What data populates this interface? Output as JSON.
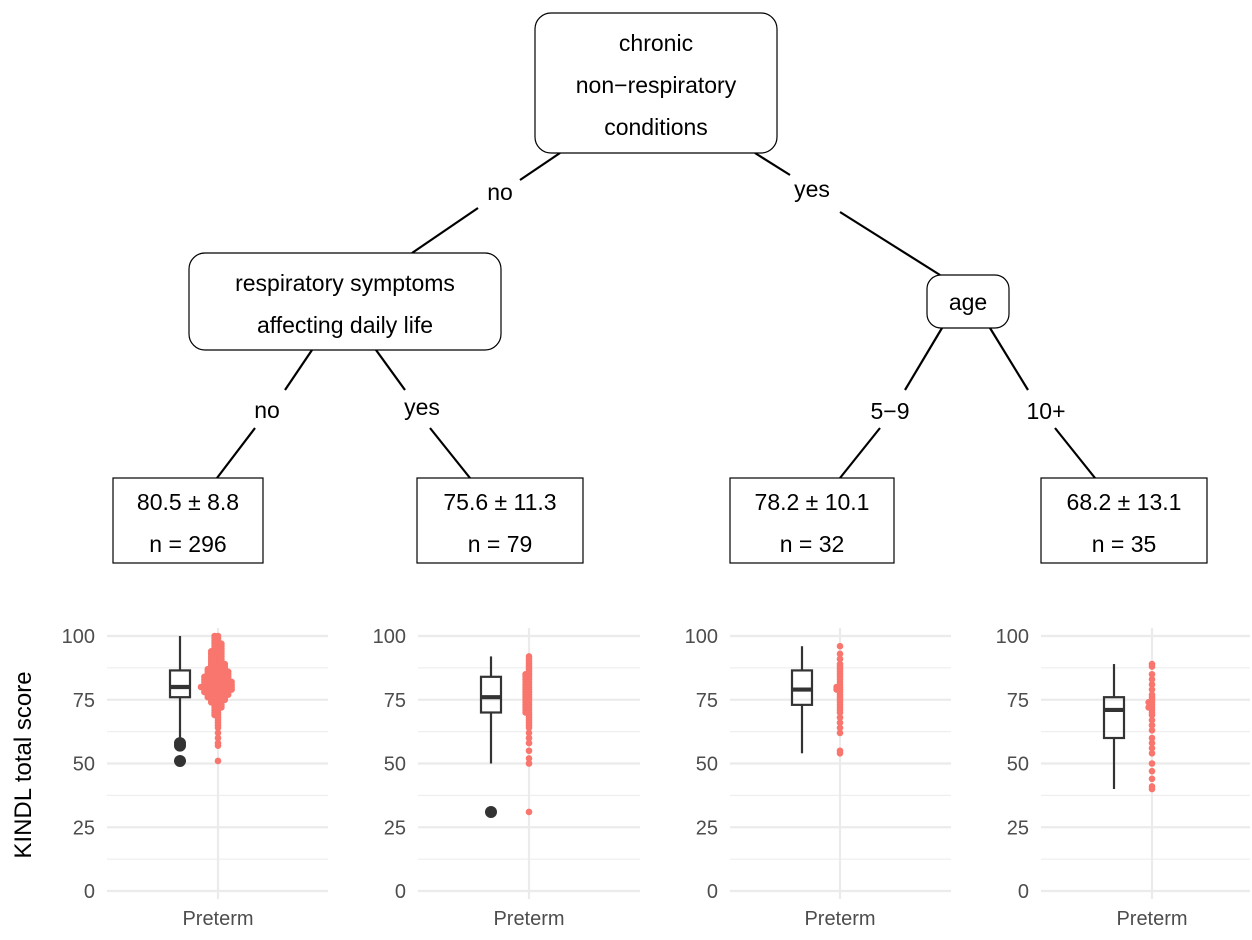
{
  "tree": {
    "root": {
      "label_lines": [
        "chronic",
        "non−respiratory",
        "conditions"
      ]
    },
    "root_edges": {
      "left": "no",
      "right": "yes"
    },
    "left_node": {
      "label_lines": [
        "respiratory symptoms",
        "affecting daily life"
      ]
    },
    "left_edges": {
      "left": "no",
      "right": "yes"
    },
    "right_node": {
      "label_lines": [
        "age"
      ]
    },
    "right_edges": {
      "left": "5−9",
      "right": "10+"
    },
    "leaves": [
      {
        "stat": "80.5 ± 8.8",
        "n": "n = 296"
      },
      {
        "stat": "75.6 ± 11.3",
        "n": "n = 79"
      },
      {
        "stat": "78.2 ± 10.1",
        "n": "n = 32"
      },
      {
        "stat": "68.2 ± 13.1",
        "n": "n = 35"
      }
    ]
  },
  "colors": {
    "box": "#333333",
    "points": "#f8766d",
    "grid": "#ebebeb"
  },
  "chart_data": {
    "type": "box",
    "ylabel": "KINDL total score",
    "ylim": [
      0,
      100
    ],
    "yticks": [
      0,
      25,
      50,
      75,
      100
    ],
    "panels": [
      {
        "category": "Preterm",
        "box": {
          "min": 60,
          "q1": 76,
          "median": 80,
          "q3": 86.5,
          "max": 100
        },
        "outliers": [
          51,
          57,
          58
        ],
        "points": [
          100,
          100,
          99,
          99,
          98,
          98,
          97,
          97,
          97,
          96,
          96,
          96,
          95,
          95,
          95,
          94,
          94,
          94,
          94,
          93,
          93,
          93,
          93,
          92,
          92,
          92,
          92,
          91,
          91,
          91,
          91,
          90,
          90,
          90,
          90,
          89,
          89,
          89,
          89,
          89,
          88,
          88,
          88,
          88,
          88,
          87,
          87,
          87,
          87,
          87,
          87,
          86,
          86,
          86,
          86,
          86,
          86,
          86,
          85,
          85,
          85,
          85,
          85,
          85,
          85,
          84,
          84,
          84,
          84,
          84,
          84,
          84,
          84,
          83,
          83,
          83,
          83,
          83,
          83,
          83,
          83,
          82,
          82,
          82,
          82,
          82,
          82,
          82,
          82,
          82,
          81,
          81,
          81,
          81,
          81,
          81,
          81,
          81,
          81,
          80,
          80,
          80,
          80,
          80,
          80,
          80,
          80,
          80,
          80,
          79,
          79,
          79,
          79,
          79,
          79,
          79,
          79,
          79,
          78,
          78,
          78,
          78,
          78,
          78,
          78,
          78,
          77,
          77,
          77,
          77,
          77,
          77,
          77,
          76,
          76,
          76,
          76,
          76,
          76,
          75,
          75,
          75,
          75,
          75,
          74,
          74,
          74,
          74,
          73,
          73,
          73,
          72,
          72,
          72,
          71,
          71,
          70,
          70,
          69,
          69,
          68,
          67,
          66,
          65,
          64,
          62,
          60,
          58,
          57,
          51
        ]
      },
      {
        "category": "Preterm",
        "box": {
          "min": 50,
          "q1": 70,
          "median": 76,
          "q3": 84,
          "max": 92
        },
        "outliers": [
          31
        ],
        "points": [
          92,
          91,
          90,
          89,
          88,
          87,
          86,
          85,
          85,
          84,
          84,
          83,
          83,
          82,
          82,
          81,
          81,
          80,
          80,
          79,
          79,
          78,
          78,
          77,
          77,
          76,
          76,
          75,
          75,
          74,
          74,
          73,
          73,
          72,
          72,
          71,
          71,
          70,
          70,
          69,
          68,
          67,
          66,
          65,
          64,
          62,
          60,
          58,
          55,
          52,
          50,
          31
        ]
      },
      {
        "category": "Preterm",
        "box": {
          "min": 54,
          "q1": 73,
          "median": 79,
          "q3": 86.5,
          "max": 96
        },
        "outliers": [],
        "points": [
          96,
          93,
          91,
          89,
          88,
          87,
          86,
          85,
          84,
          83,
          82,
          81,
          80,
          80,
          79,
          79,
          78,
          77,
          76,
          75,
          74,
          73,
          72,
          71,
          70,
          68,
          66,
          64,
          62,
          55,
          54
        ]
      },
      {
        "category": "Preterm",
        "box": {
          "min": 40,
          "q1": 60,
          "median": 71,
          "q3": 76,
          "max": 89
        },
        "outliers": [],
        "points": [
          89,
          88,
          85,
          83,
          81,
          79,
          77,
          76,
          75,
          74,
          74,
          73,
          72,
          72,
          71,
          70,
          69,
          67,
          65,
          63,
          60,
          58,
          56,
          54,
          50,
          47,
          44,
          41,
          40
        ]
      }
    ]
  }
}
